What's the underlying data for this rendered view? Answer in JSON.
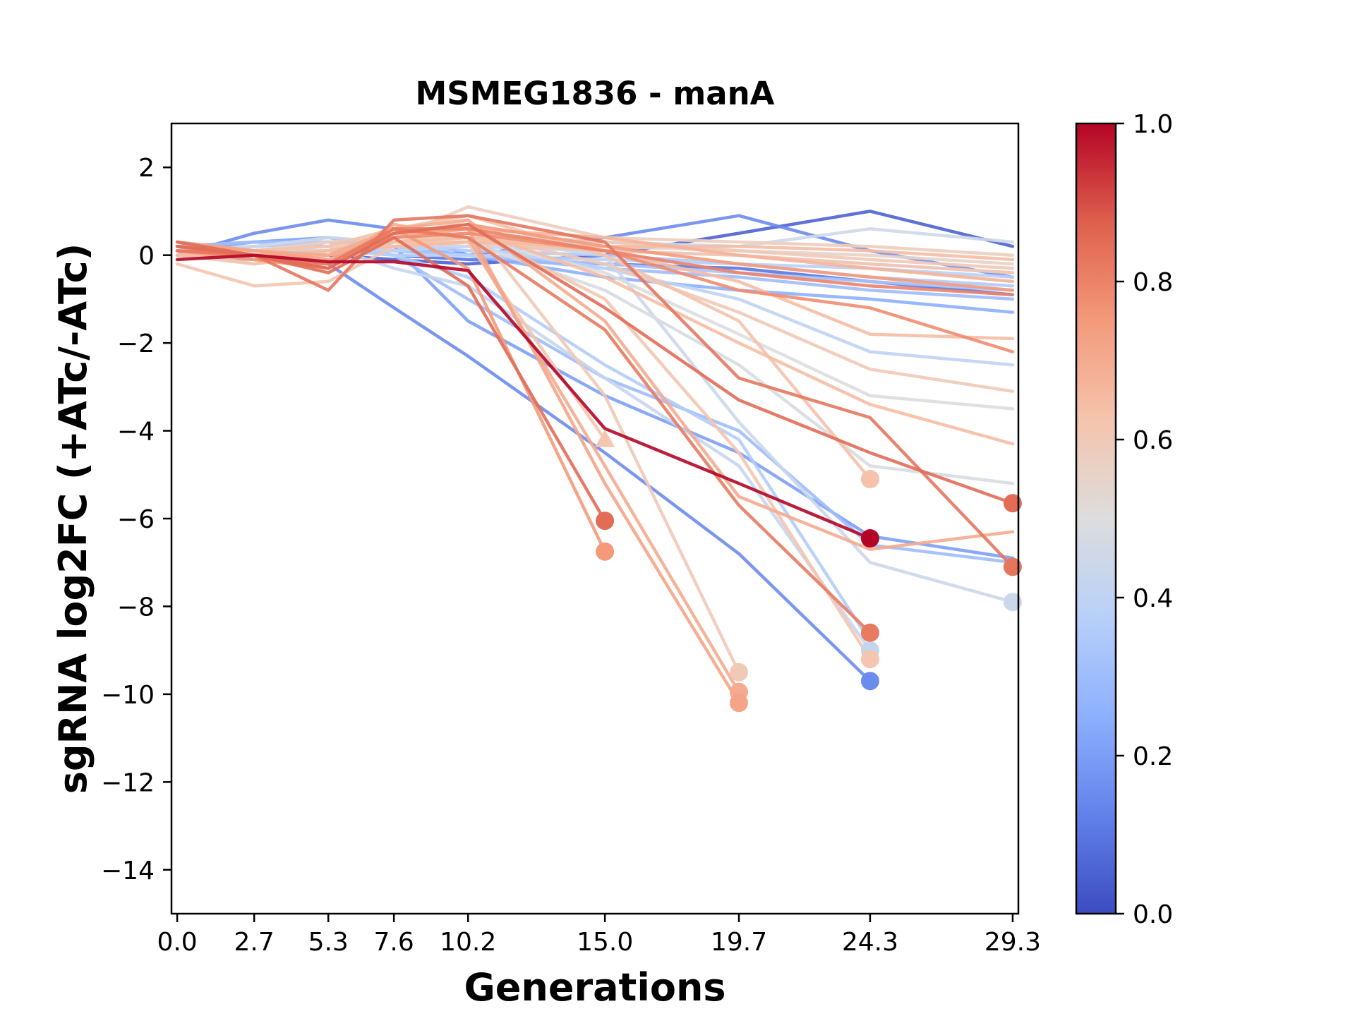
{
  "chart_data": {
    "type": "line",
    "title": "MSMEG1836 - manA",
    "xlabel": "Generations",
    "ylabel": "sgRNA log2FC (+ATc/-ATc)",
    "x": [
      0.0,
      2.7,
      5.3,
      7.6,
      10.2,
      15.0,
      19.7,
      24.3,
      29.3
    ],
    "x_tick_labels": [
      "0.0",
      "2.7",
      "5.3",
      "7.6",
      "10.2",
      "15.0",
      "19.7",
      "24.3",
      "29.3"
    ],
    "xlim": [
      -0.2,
      29.5
    ],
    "ylim": [
      -15,
      3
    ],
    "y_ticks": [
      2,
      0,
      -2,
      -4,
      -6,
      -8,
      -10,
      -12,
      -14
    ],
    "y_tick_labels": [
      "2",
      "0",
      "−2",
      "−4",
      "−6",
      "−8",
      "−10",
      "−12",
      "−14"
    ],
    "grid": false,
    "colorbar": {
      "colormap": "coolwarm",
      "range": [
        0.0,
        1.0
      ],
      "ticks": [
        0.0,
        0.2,
        0.4,
        0.6,
        0.8,
        1.0
      ],
      "tick_labels": [
        "0.0",
        "0.2",
        "0.4",
        "0.6",
        "0.8",
        "1.0"
      ]
    },
    "series": [
      {
        "c": 1.0,
        "values": [
          -0.1,
          0.0,
          -0.15,
          -0.15,
          -0.35,
          -3.95,
          -5.2,
          -6.45,
          null
        ],
        "end_marker": "circle"
      },
      {
        "c": 0.85,
        "values": [
          0.3,
          0.0,
          -0.4,
          0.4,
          -0.7,
          -6.05,
          null,
          null,
          null
        ],
        "end_marker": "circle"
      },
      {
        "c": 0.75,
        "values": [
          0.2,
          -0.1,
          -0.3,
          0.6,
          -0.3,
          -6.75,
          null,
          null,
          null
        ],
        "end_marker": "circle"
      },
      {
        "c": 0.62,
        "values": [
          0.1,
          -0.2,
          0.0,
          0.3,
          0.3,
          -4.2,
          null,
          null,
          null
        ],
        "end_marker": "triangle"
      },
      {
        "c": 0.7,
        "values": [
          0.2,
          0.0,
          -0.2,
          0.7,
          0.4,
          -4.8,
          -9.95,
          null,
          null
        ],
        "end_marker": "circle"
      },
      {
        "c": 0.72,
        "values": [
          0.3,
          0.1,
          -0.1,
          0.5,
          0.6,
          -5.2,
          -10.2,
          null,
          null
        ],
        "end_marker": "circle"
      },
      {
        "c": 0.6,
        "values": [
          0.0,
          -0.2,
          0.1,
          0.4,
          0.8,
          -3.2,
          -9.5,
          null,
          null
        ],
        "end_marker": "circle"
      },
      {
        "c": 0.15,
        "values": [
          0.0,
          -0.1,
          -0.2,
          -1.2,
          -2.3,
          -4.5,
          -6.8,
          -9.7,
          null
        ],
        "end_marker": "circle"
      },
      {
        "c": 0.82,
        "values": [
          0.2,
          0.0,
          -0.2,
          0.6,
          0.4,
          -1.7,
          -5.7,
          -8.6,
          null
        ],
        "end_marker": "circle"
      },
      {
        "c": 0.62,
        "values": [
          0.1,
          0.0,
          0.1,
          0.5,
          0.6,
          -1.0,
          -4.5,
          -9.2,
          null
        ],
        "end_marker": "circle"
      },
      {
        "c": 0.42,
        "values": [
          0.0,
          0.1,
          0.2,
          -0.3,
          -0.7,
          -2.8,
          -4.8,
          -9.0,
          null
        ],
        "end_marker": "circle"
      },
      {
        "c": 0.36,
        "values": [
          0.1,
          0.2,
          0.3,
          0.0,
          -0.5,
          -2.5,
          -4.2,
          -8.8,
          null
        ],
        "end_marker": "none"
      },
      {
        "c": 0.63,
        "values": [
          0.0,
          0.1,
          0.2,
          0.6,
          0.9,
          0.0,
          -1.5,
          -5.1,
          null
        ],
        "end_marker": "circle"
      },
      {
        "c": 0.85,
        "values": [
          0.2,
          0.0,
          -0.3,
          0.5,
          0.7,
          -1.2,
          -3.3,
          -4.5,
          -5.65
        ],
        "end_marker": "circle"
      },
      {
        "c": 0.83,
        "values": [
          0.1,
          0.0,
          -0.8,
          0.8,
          0.9,
          0.3,
          -2.8,
          -3.7,
          -7.1
        ],
        "end_marker": "circle"
      },
      {
        "c": 0.44,
        "values": [
          0.0,
          0.1,
          0.2,
          0.3,
          0.4,
          0.0,
          -3.8,
          -7.0,
          -7.9
        ],
        "end_marker": "circle"
      },
      {
        "c": 0.2,
        "values": [
          0.1,
          0.3,
          0.4,
          0.2,
          -1.5,
          -3.2,
          -4.5,
          -6.4,
          -6.9
        ],
        "end_marker": "none"
      },
      {
        "c": 0.3,
        "values": [
          0.2,
          0.3,
          0.3,
          0.0,
          -1.0,
          -2.8,
          -4.0,
          -6.6,
          -7.0
        ],
        "end_marker": "none"
      },
      {
        "c": 0.7,
        "values": [
          0.3,
          0.1,
          0.0,
          0.6,
          0.8,
          -1.5,
          -5.5,
          -6.7,
          -6.3
        ],
        "end_marker": "none"
      },
      {
        "c": 0.48,
        "values": [
          0.0,
          0.0,
          0.1,
          0.2,
          0.3,
          -0.8,
          -2.5,
          -4.8,
          -5.2
        ],
        "end_marker": "none"
      },
      {
        "c": 0.65,
        "values": [
          0.1,
          -0.1,
          0.0,
          0.4,
          0.6,
          -0.5,
          -2.0,
          -3.4,
          -4.3
        ],
        "end_marker": "none"
      },
      {
        "c": 0.5,
        "values": [
          0.0,
          0.1,
          0.2,
          0.3,
          0.4,
          -0.4,
          -1.8,
          -3.2,
          -3.5
        ],
        "end_marker": "none"
      },
      {
        "c": 0.6,
        "values": [
          0.1,
          0.0,
          0.1,
          0.3,
          0.5,
          -0.2,
          -1.3,
          -2.6,
          -3.1
        ],
        "end_marker": "none"
      },
      {
        "c": 0.4,
        "values": [
          0.0,
          0.1,
          0.2,
          0.1,
          0.2,
          -0.3,
          -1.0,
          -2.2,
          -2.5
        ],
        "end_marker": "none"
      },
      {
        "c": 0.78,
        "values": [
          0.1,
          0.0,
          -0.2,
          0.4,
          0.5,
          0.1,
          -0.8,
          -1.2,
          -2.2
        ],
        "end_marker": "none"
      },
      {
        "c": 0.65,
        "values": [
          0.0,
          0.0,
          0.1,
          0.3,
          0.4,
          0.1,
          -0.6,
          -1.8,
          -1.9
        ],
        "end_marker": "none"
      },
      {
        "c": 0.05,
        "values": [
          0.0,
          0.1,
          0.0,
          -0.1,
          -0.2,
          0.0,
          0.5,
          1.0,
          0.2
        ],
        "end_marker": "none"
      },
      {
        "c": 0.15,
        "values": [
          0.0,
          0.5,
          0.8,
          0.6,
          0.0,
          0.4,
          0.9,
          0.1,
          -0.5
        ],
        "end_marker": "none"
      },
      {
        "c": 0.1,
        "values": [
          0.1,
          0.1,
          0.2,
          0.0,
          -0.1,
          -0.2,
          -0.3,
          -0.6,
          -0.9
        ],
        "end_marker": "none"
      },
      {
        "c": 0.25,
        "values": [
          0.0,
          0.2,
          0.3,
          0.2,
          0.0,
          -0.5,
          -0.8,
          -1.0,
          -1.3
        ],
        "end_marker": "none"
      },
      {
        "c": 0.3,
        "values": [
          0.2,
          0.3,
          0.2,
          0.1,
          0.0,
          -0.3,
          -0.5,
          -0.8,
          -1.0
        ],
        "end_marker": "none"
      },
      {
        "c": 0.35,
        "values": [
          0.1,
          0.2,
          0.3,
          0.2,
          0.1,
          0.0,
          -0.2,
          -0.5,
          -0.7
        ],
        "end_marker": "none"
      },
      {
        "c": 0.4,
        "values": [
          0.0,
          0.1,
          0.2,
          0.2,
          0.2,
          0.1,
          0.0,
          -0.2,
          -0.4
        ],
        "end_marker": "none"
      },
      {
        "c": 0.45,
        "values": [
          0.1,
          0.2,
          0.4,
          0.3,
          0.2,
          0.3,
          0.2,
          0.6,
          0.3
        ],
        "end_marker": "none"
      },
      {
        "c": 0.55,
        "values": [
          0.0,
          0.1,
          0.2,
          0.3,
          0.3,
          0.2,
          0.1,
          0.0,
          -0.2
        ],
        "end_marker": "none"
      },
      {
        "c": 0.6,
        "values": [
          0.1,
          0.0,
          0.1,
          0.3,
          0.5,
          0.3,
          0.1,
          -0.1,
          -0.3
        ],
        "end_marker": "none"
      },
      {
        "c": 0.68,
        "values": [
          0.2,
          0.0,
          0.0,
          0.4,
          0.6,
          0.4,
          0.0,
          -0.3,
          -0.6
        ],
        "end_marker": "none"
      },
      {
        "c": 0.75,
        "values": [
          0.1,
          -0.1,
          -0.2,
          0.5,
          0.7,
          0.2,
          -0.2,
          -0.5,
          -0.8
        ],
        "end_marker": "none"
      },
      {
        "c": 0.8,
        "values": [
          0.2,
          0.0,
          -0.3,
          0.6,
          0.6,
          0.1,
          -0.4,
          -0.7,
          -0.9
        ],
        "end_marker": "none"
      },
      {
        "c": 0.62,
        "values": [
          -0.2,
          -0.7,
          -0.6,
          0.2,
          0.3,
          0.1,
          0.0,
          -0.2,
          -0.4
        ],
        "end_marker": "none"
      },
      {
        "c": 0.58,
        "values": [
          0.1,
          0.1,
          0.3,
          0.4,
          1.1,
          0.4,
          0.3,
          0.2,
          0.0
        ],
        "end_marker": "none"
      },
      {
        "c": 0.38,
        "values": [
          0.0,
          0.1,
          0.1,
          0.0,
          0.0,
          -0.1,
          -0.2,
          -0.3,
          -0.5
        ],
        "end_marker": "none"
      },
      {
        "c": 0.33,
        "values": [
          0.0,
          0.0,
          0.1,
          0.1,
          0.0,
          -0.2,
          -0.4,
          -0.6,
          -0.8
        ],
        "end_marker": "none"
      },
      {
        "c": 0.65,
        "values": [
          0.0,
          0.0,
          0.1,
          0.2,
          0.3,
          0.2,
          0.2,
          0.1,
          -0.1
        ],
        "end_marker": "none"
      }
    ]
  }
}
